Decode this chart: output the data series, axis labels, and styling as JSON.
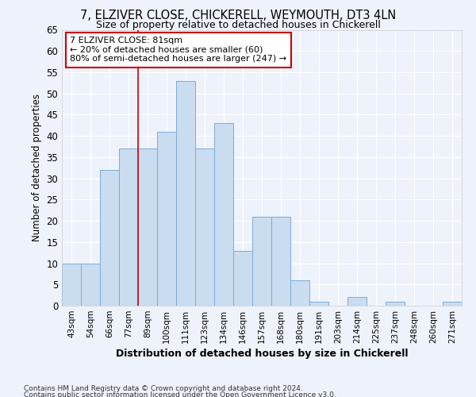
{
  "title1": "7, ELZIVER CLOSE, CHICKERELL, WEYMOUTH, DT3 4LN",
  "title2": "Size of property relative to detached houses in Chickerell",
  "xlabel": "Distribution of detached houses by size in Chickerell",
  "ylabel": "Number of detached properties",
  "categories": [
    "43sqm",
    "54sqm",
    "66sqm",
    "77sqm",
    "89sqm",
    "100sqm",
    "111sqm",
    "123sqm",
    "134sqm",
    "146sqm",
    "157sqm",
    "168sqm",
    "180sqm",
    "191sqm",
    "203sqm",
    "214sqm",
    "225sqm",
    "237sqm",
    "248sqm",
    "260sqm",
    "271sqm"
  ],
  "values": [
    10,
    10,
    32,
    37,
    37,
    41,
    53,
    37,
    43,
    13,
    21,
    21,
    6,
    1,
    0,
    2,
    0,
    1,
    0,
    0,
    1
  ],
  "bar_color": "#c9dcf0",
  "bar_edge_color": "#7aadd4",
  "ylim": [
    0,
    65
  ],
  "yticks": [
    0,
    5,
    10,
    15,
    20,
    25,
    30,
    35,
    40,
    45,
    50,
    55,
    60,
    65
  ],
  "vline_x_index": 3.5,
  "vline_color": "#cc0000",
  "annotation_line1": "7 ELZIVER CLOSE: 81sqm",
  "annotation_line2": "← 20% of detached houses are smaller (60)",
  "annotation_line3": "80% of semi-detached houses are larger (247) →",
  "footer1": "Contains HM Land Registry data © Crown copyright and database right 2024.",
  "footer2": "Contains public sector information licensed under the Open Government Licence v3.0.",
  "background_color": "#eef2fb",
  "grid_color": "#ffffff"
}
